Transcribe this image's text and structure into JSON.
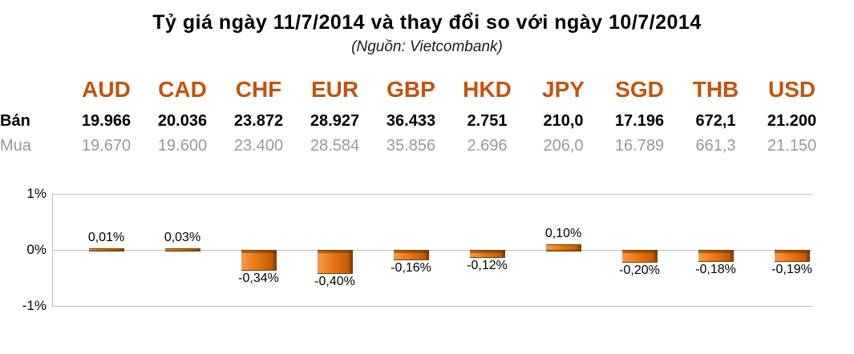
{
  "title": "Tỷ giá ngày 11/7/2014 và thay đổi so với ngày 10/7/2014",
  "subtitle": "(Nguồn: Vietcombank)",
  "table": {
    "currencies": [
      "AUD",
      "CAD",
      "CHF",
      "EUR",
      "GBP",
      "HKD",
      "JPY",
      "SGD",
      "THB",
      "USD"
    ],
    "rows": [
      {
        "label": "Bán",
        "values": [
          "19.966",
          "20.036",
          "23.872",
          "28.927",
          "36.433",
          "2.751",
          "210,0",
          "17.196",
          "672,1",
          "21.200"
        ]
      },
      {
        "label": "Mua",
        "values": [
          "19.670",
          "19.600",
          "23.400",
          "28.584",
          "35.856",
          "2.696",
          "206,0",
          "16.789",
          "661,3",
          "21.150"
        ]
      }
    ]
  },
  "chart_data": {
    "type": "bar",
    "title": "",
    "categories": [
      "AUD",
      "CAD",
      "CHF",
      "EUR",
      "GBP",
      "HKD",
      "JPY",
      "SGD",
      "THB",
      "USD"
    ],
    "values": [
      0.01,
      0.03,
      -0.34,
      -0.4,
      -0.16,
      -0.12,
      0.1,
      -0.2,
      -0.18,
      -0.19
    ],
    "data_labels": [
      "0,01%",
      "0,03%",
      "-0,34%",
      "-0,40%",
      "-0,16%",
      "-0,12%",
      "0,10%",
      "-0,20%",
      "-0,18%",
      "-0,19%"
    ],
    "xlabel": "",
    "ylabel": "",
    "ylim": [
      -1,
      1
    ],
    "yticks": [
      1,
      0,
      -1
    ],
    "ytick_labels": [
      "1%",
      "0%",
      "-1%"
    ],
    "grid": true,
    "legend": false,
    "bar_color": "#e87511"
  },
  "colors": {
    "header_orange": "#c4530a",
    "bar_orange": "#e87511",
    "muted_gray": "#999999",
    "gridline_gray": "#bfbfbf"
  }
}
